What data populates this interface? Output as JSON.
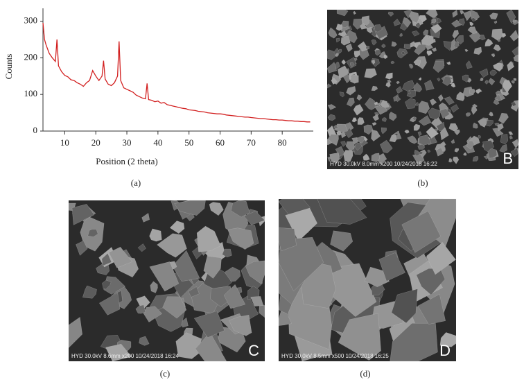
{
  "chart_data": {
    "type": "line",
    "caption": "(a)",
    "x_label": "Position (2 theta)",
    "y_label": "Counts",
    "color": "#d21f1f",
    "xlim": [
      3,
      90
    ],
    "ylim": [
      0,
      335
    ],
    "xticks": [
      10,
      20,
      30,
      40,
      50,
      60,
      70,
      80
    ],
    "yticks": [
      0,
      100,
      200,
      300
    ],
    "x": [
      3,
      3.5,
      4,
      5,
      6,
      7,
      7.5,
      8,
      9,
      10,
      11,
      12,
      13,
      14,
      15,
      16,
      17,
      18,
      19,
      20,
      21,
      22,
      22.5,
      23,
      24,
      25,
      26,
      27,
      27.5,
      28,
      29,
      30,
      31,
      32,
      33,
      34,
      35,
      36,
      36.5,
      37,
      38,
      39,
      40,
      41,
      42,
      43,
      44,
      45,
      46,
      47,
      48,
      49,
      50,
      51,
      52,
      53,
      54,
      55,
      56,
      57,
      58,
      59,
      60,
      61,
      62,
      63,
      64,
      65,
      66,
      67,
      68,
      69,
      70,
      71,
      72,
      73,
      74,
      75,
      76,
      77,
      78,
      79,
      80,
      81,
      82,
      83,
      84,
      85,
      86,
      87,
      88,
      89
    ],
    "values": [
      295,
      250,
      235,
      212,
      200,
      190,
      250,
      178,
      162,
      152,
      148,
      140,
      138,
      132,
      128,
      122,
      132,
      138,
      165,
      150,
      138,
      150,
      192,
      142,
      128,
      124,
      132,
      150,
      245,
      138,
      118,
      114,
      110,
      106,
      98,
      94,
      90,
      88,
      130,
      86,
      84,
      80,
      82,
      76,
      78,
      72,
      70,
      68,
      66,
      64,
      62,
      61,
      58,
      57,
      56,
      54,
      53,
      52,
      50,
      49,
      48,
      47,
      47,
      46,
      44,
      43,
      42,
      41,
      40,
      39,
      38,
      38,
      37,
      36,
      35,
      34,
      34,
      33,
      32,
      31,
      31,
      30,
      30,
      29,
      28,
      28,
      27,
      27,
      26,
      26,
      25,
      25
    ]
  },
  "images": [
    {
      "caption": "(b)",
      "info": "HYD 30.0kV 8.0mm x200 10/24/2018 16:22",
      "letter": "B"
    },
    {
      "caption": "(c)",
      "info": "HYD 30.0kV 8.6mm x200 10/24/2018 16:24",
      "letter": "C"
    },
    {
      "caption": "(d)",
      "info": "HYD 30.0kV 8.5mm x500 10/24/2018 16:25",
      "letter": "D"
    }
  ]
}
